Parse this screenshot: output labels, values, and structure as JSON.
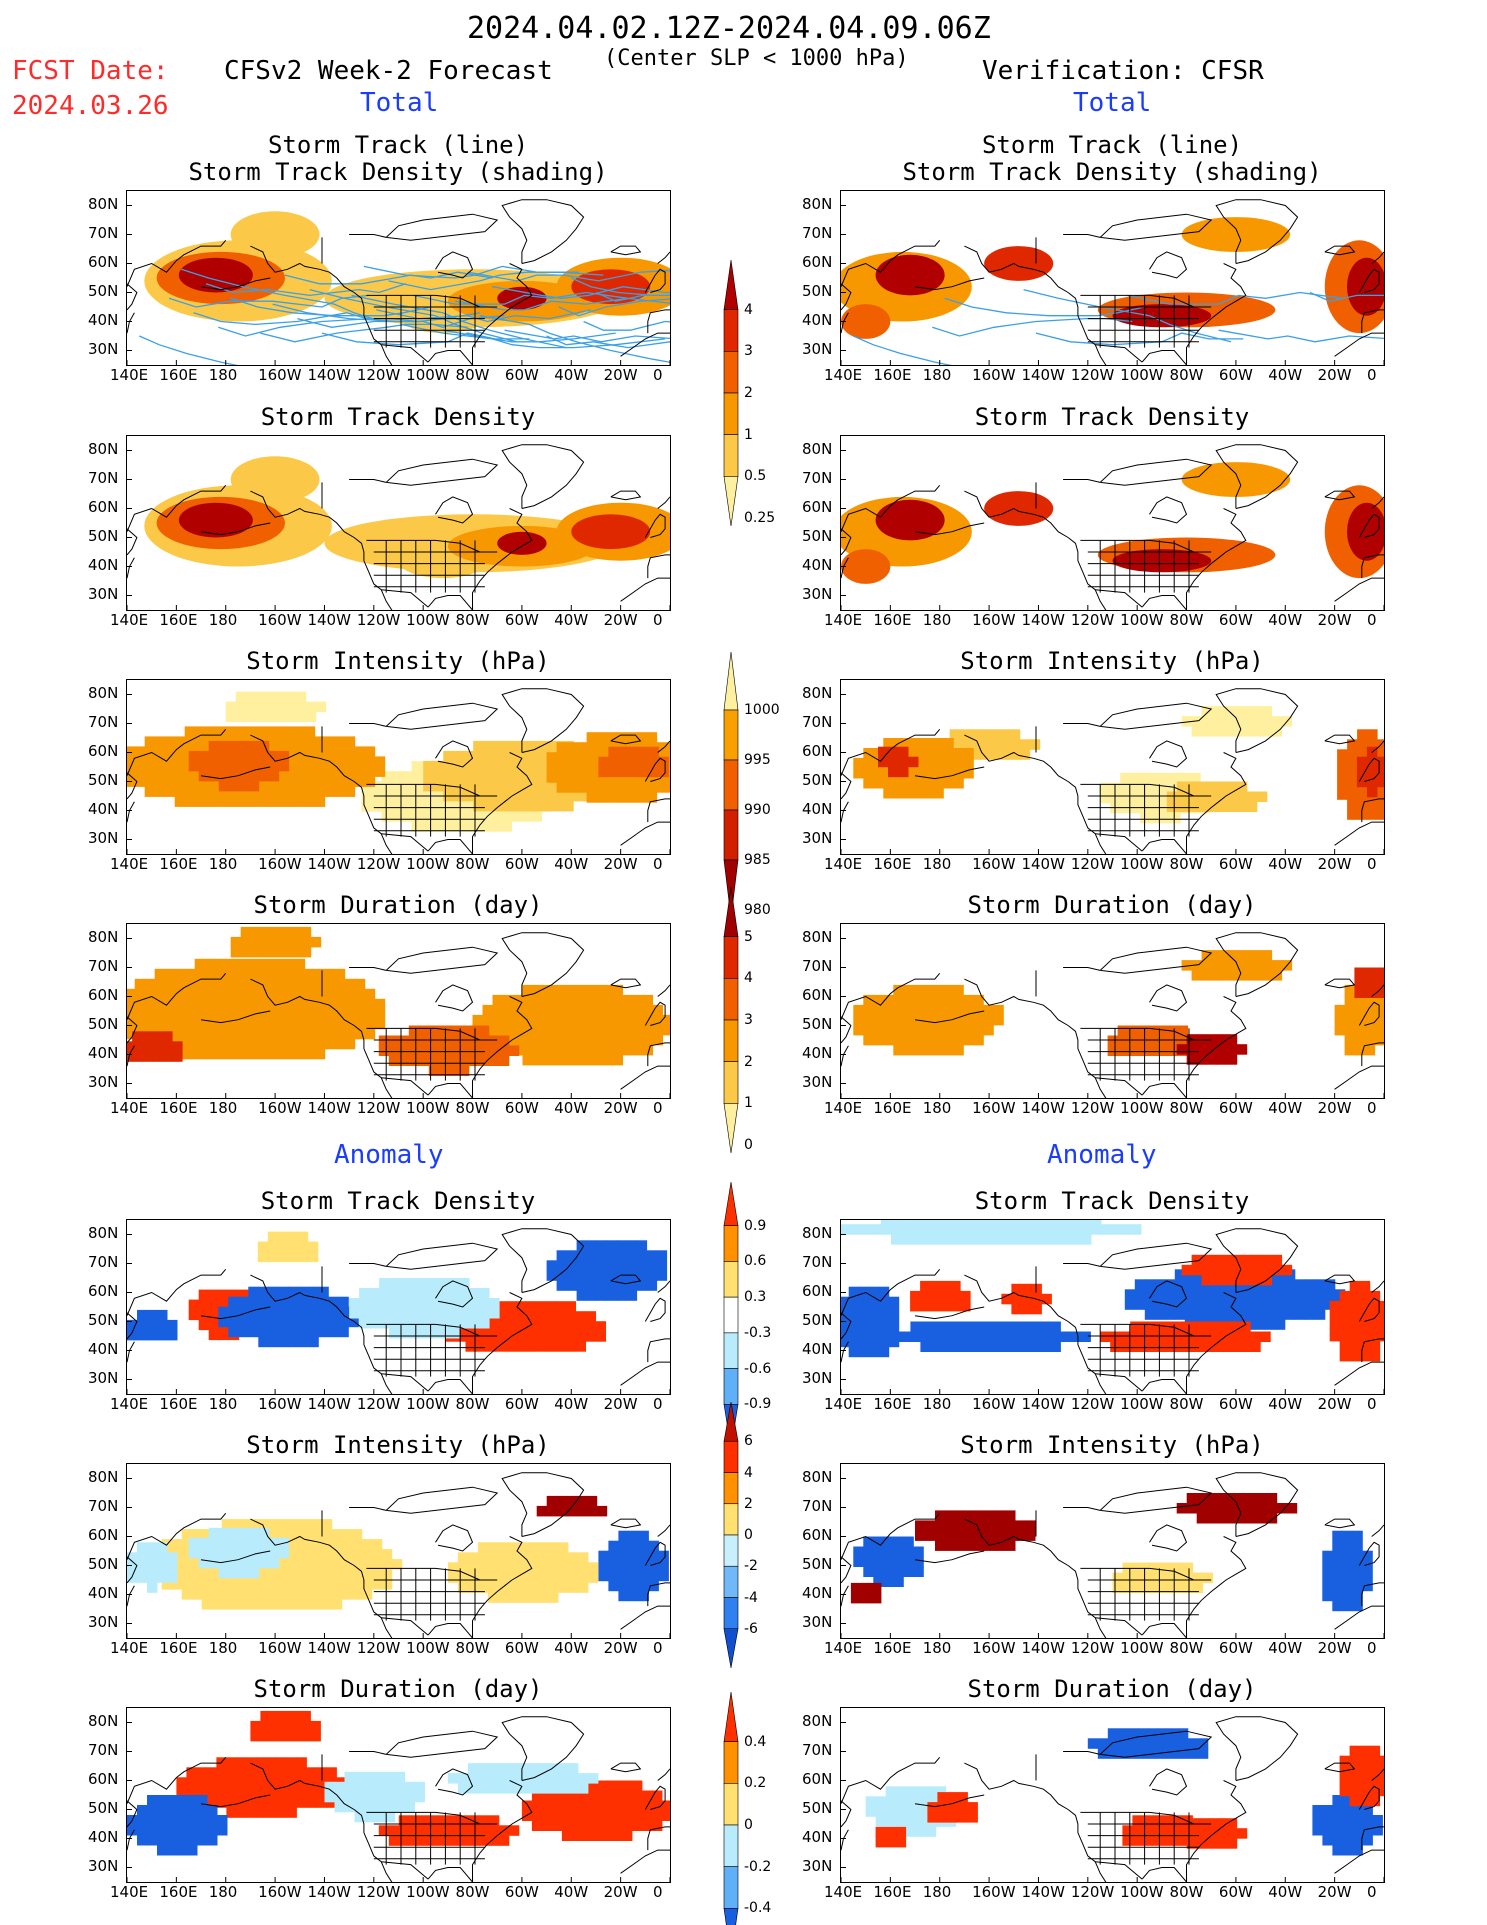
{
  "header": {
    "date_range": "2024.04.02.12Z-2024.04.09.06Z",
    "criterion": "(Center SLP < 1000 hPa)",
    "fcst_label": "FCST Date:",
    "fcst_date": "2024.03.26",
    "left_title": "CFSv2 Week-2 Forecast",
    "right_title": "Verification: CFSR",
    "total_left": "Total",
    "total_right": "Total",
    "anomaly_left": "Anomaly",
    "anomaly_right": "Anomaly"
  },
  "panel_titles": {
    "track_line": "Storm Track (line)",
    "track_shading": "Storm Track Density (shading)",
    "density": "Storm Track Density",
    "intensity": "Storm Intensity (hPa)",
    "duration": "Storm Duration (day)"
  },
  "axes": {
    "lon_labels": [
      "140E",
      "160E",
      "180",
      "160W",
      "140W",
      "120W",
      "100W",
      "80W",
      "60W",
      "40W",
      "20W",
      "0"
    ],
    "lat_labels": [
      "80N",
      "70N",
      "60N",
      "50N",
      "40N",
      "30N"
    ]
  },
  "colorbars": {
    "density_total": {
      "labels": [
        "4",
        "3",
        "2",
        "1",
        "0.5",
        "0.25"
      ],
      "colors": [
        "#b00000",
        "#e02800",
        "#f06000",
        "#f89800",
        "#fcc848",
        "#fff0a0"
      ]
    },
    "intensity_total": {
      "labels": [
        "1000",
        "995",
        "990",
        "985",
        "980"
      ],
      "colors": [
        "#fff0a0",
        "#f8a000",
        "#f06000",
        "#d02000",
        "#a00000"
      ]
    },
    "duration_total": {
      "labels": [
        "5",
        "4",
        "3",
        "2",
        "1",
        "0"
      ],
      "colors": [
        "#a00000",
        "#e02800",
        "#f06000",
        "#f89800",
        "#fcc848",
        "#fff0a0"
      ]
    },
    "density_anom": {
      "labels": [
        "0.9",
        "0.6",
        "0.3",
        "-0.3",
        "-0.6",
        "-0.9"
      ],
      "colors": [
        "#ff3000",
        "#ff9000",
        "#ffe070",
        "#ffffff",
        "#b8ecfc",
        "#60b0f8",
        "#1860e0"
      ]
    },
    "intensity_anom": {
      "labels": [
        "6",
        "4",
        "2",
        "0",
        "-2",
        "-4",
        "-6"
      ],
      "colors": [
        "#c01000",
        "#ff3000",
        "#ff9000",
        "#ffe070",
        "#c8f0fc",
        "#70b8f8",
        "#3080f0",
        "#1050d0"
      ]
    },
    "duration_anom": {
      "labels": [
        "0.4",
        "0.2",
        "0",
        "-0.2",
        "-0.4"
      ],
      "colors": [
        "#ff3000",
        "#ff9000",
        "#ffe070",
        "#b8ecfc",
        "#60b0f8",
        "#1860e0"
      ]
    }
  },
  "palette": {
    "track_line": "#3aa0e8",
    "map_line": "#000000"
  }
}
